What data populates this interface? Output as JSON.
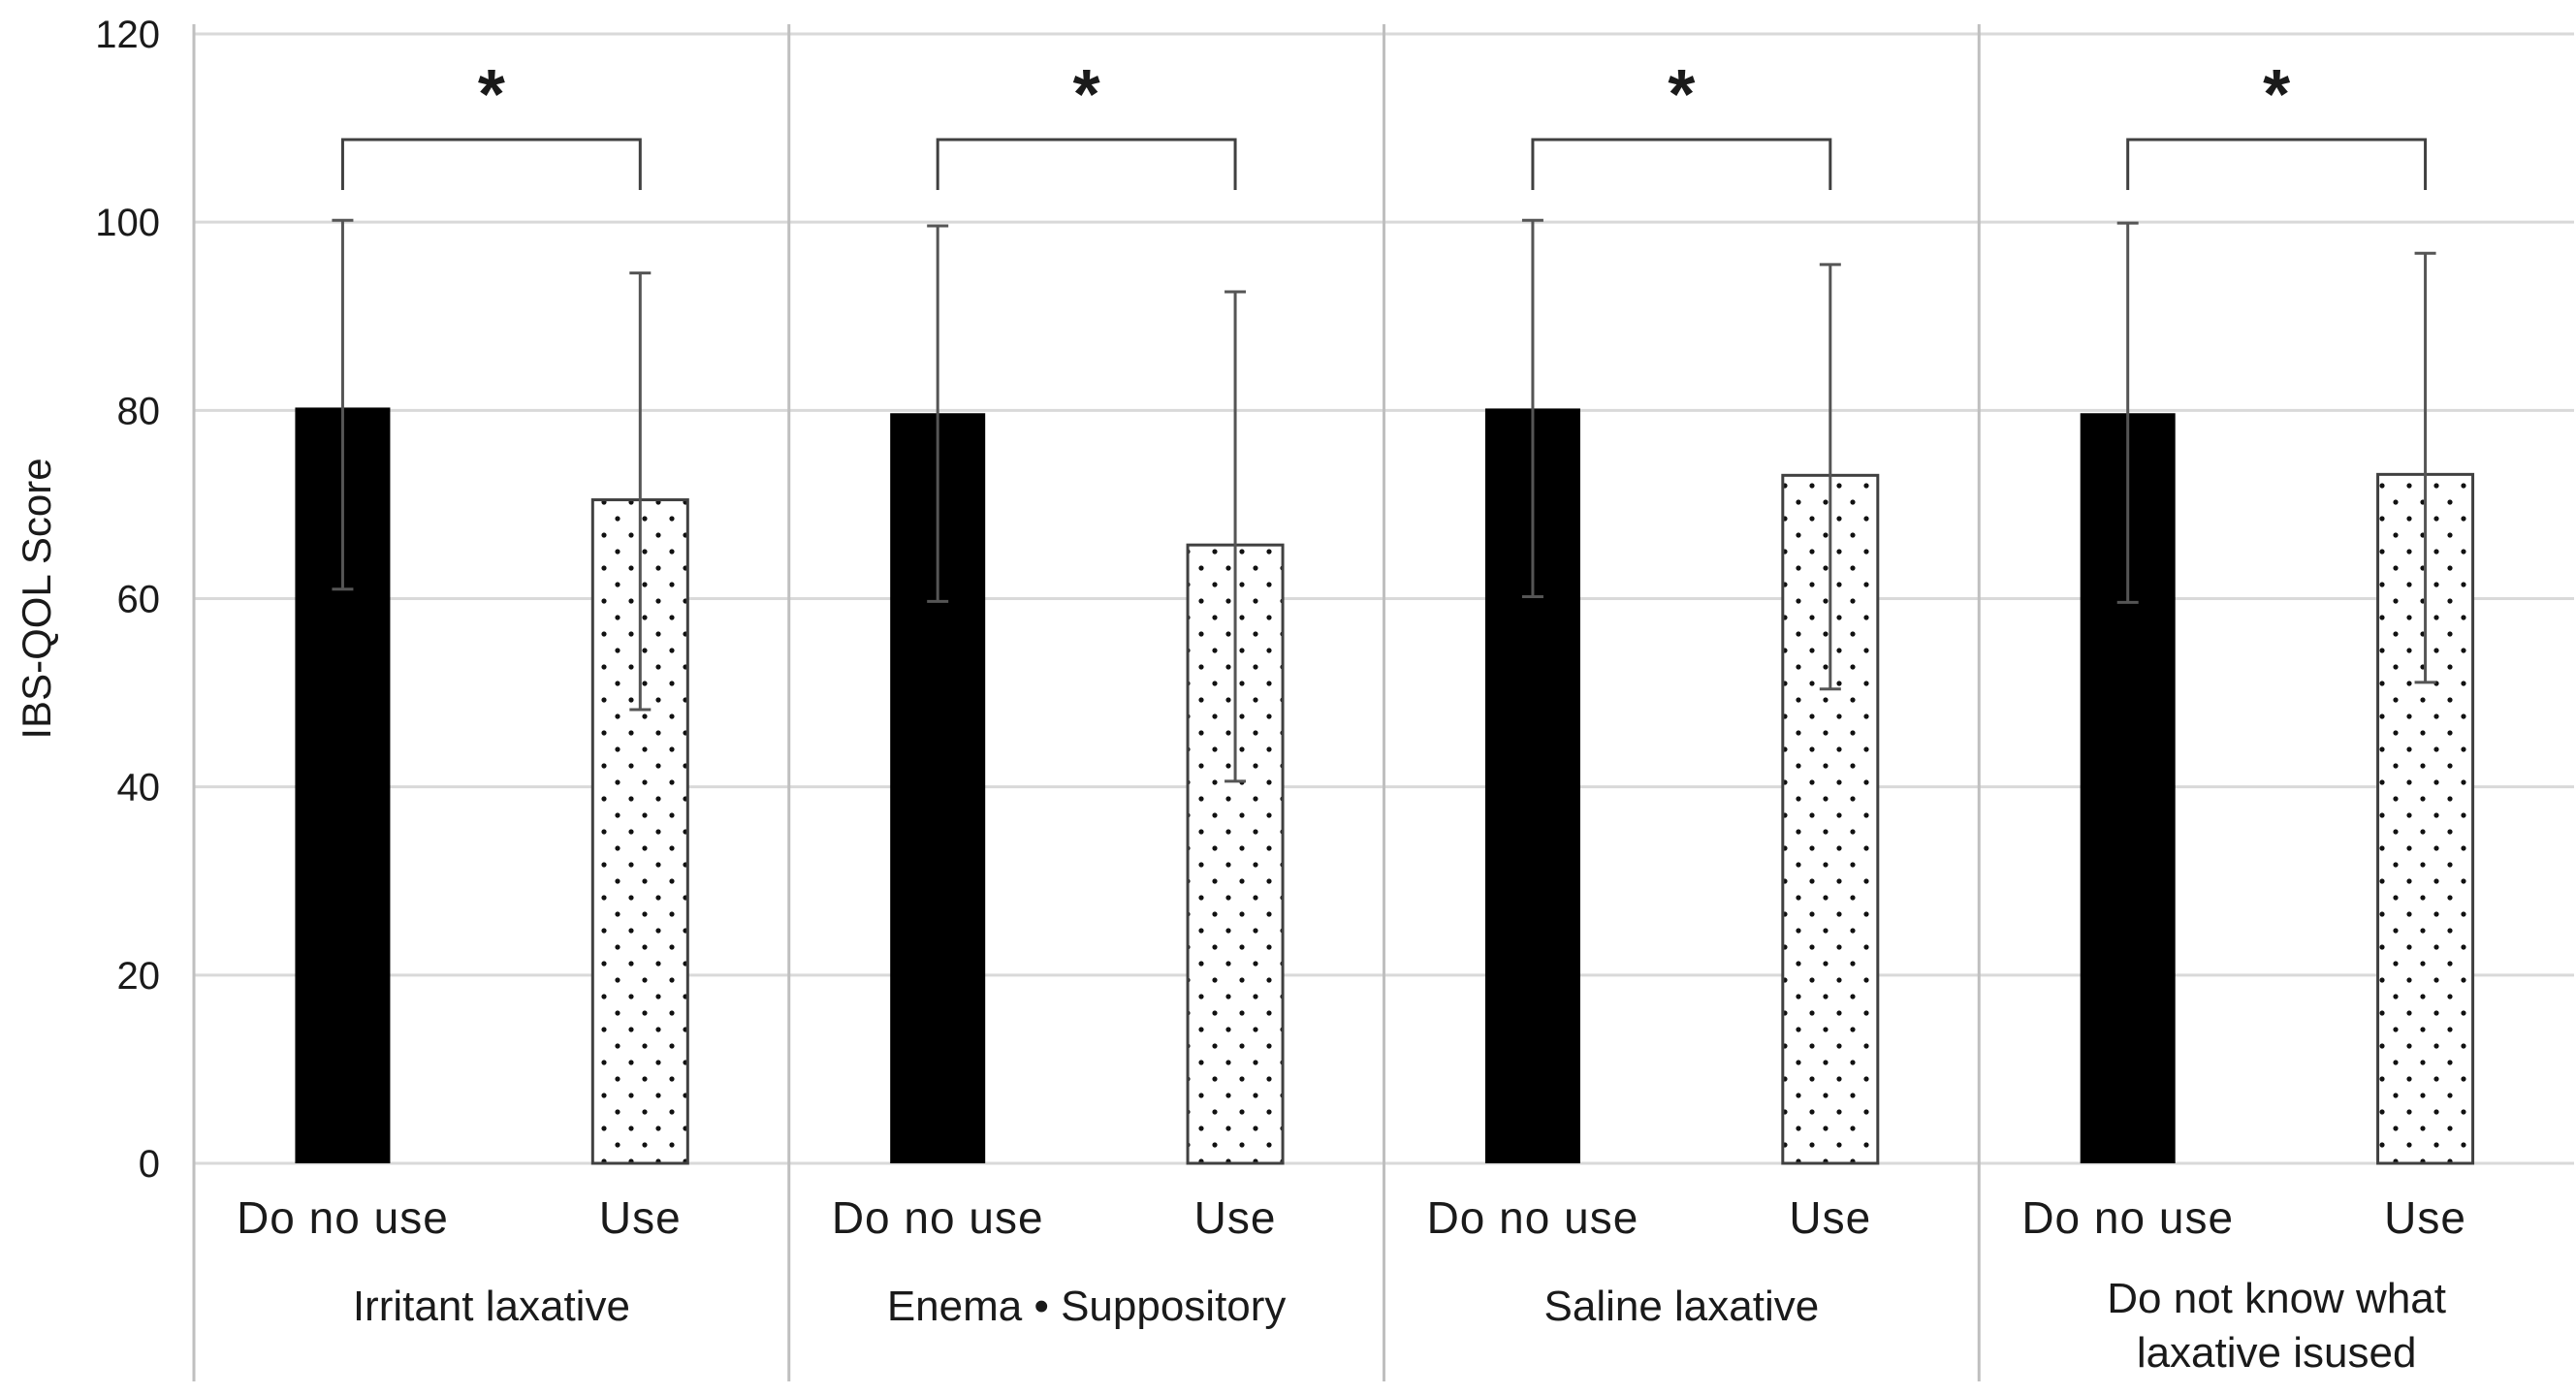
{
  "chart_data": {
    "type": "bar",
    "title": "",
    "xlabel": "",
    "ylabel": "IBS-QOL Score",
    "ylim": [
      0,
      120
    ],
    "yticks": [
      0,
      20,
      40,
      60,
      80,
      100,
      120
    ],
    "grid": true,
    "legend": "none",
    "series": [
      {
        "name": "Do no use",
        "fill": "solid-black"
      },
      {
        "name": "Use",
        "fill": "dotted-white"
      }
    ],
    "groups": [
      {
        "label_lines": [
          "Irritant laxative"
        ],
        "bars": [
          {
            "category": "Do no use",
            "value": 80.3,
            "error_low": 61.0,
            "error_high": 100.2
          },
          {
            "category": "Use",
            "value": 70.5,
            "error_low": 48.2,
            "error_high": 94.6
          }
        ],
        "significance": "*"
      },
      {
        "label_lines": [
          "Enema • Suppository"
        ],
        "bars": [
          {
            "category": "Do no use",
            "value": 79.7,
            "error_low": 59.7,
            "error_high": 99.6
          },
          {
            "category": "Use",
            "value": 65.7,
            "error_low": 40.6,
            "error_high": 92.6
          }
        ],
        "significance": "*"
      },
      {
        "label_lines": [
          "Saline laxative"
        ],
        "bars": [
          {
            "category": "Do no use",
            "value": 80.2,
            "error_low": 60.2,
            "error_high": 100.2
          },
          {
            "category": "Use",
            "value": 73.1,
            "error_low": 50.4,
            "error_high": 95.5
          }
        ],
        "significance": "*"
      },
      {
        "label_lines": [
          "Do not know what",
          "laxative isused"
        ],
        "bars": [
          {
            "category": "Do no use",
            "value": 79.7,
            "error_low": 59.6,
            "error_high": 99.9
          },
          {
            "category": "Use",
            "value": 73.2,
            "error_low": 51.1,
            "error_high": 96.7
          }
        ],
        "significance": "*"
      }
    ]
  },
  "colors": {
    "grid": "#d9d9d9",
    "axis": "#bfbfbf",
    "bar_dark": "#000000",
    "bar_light": "#ffffff",
    "bar_outline": "#404040",
    "dot": "#111111",
    "error": "#555555",
    "bracket": "#404040"
  }
}
